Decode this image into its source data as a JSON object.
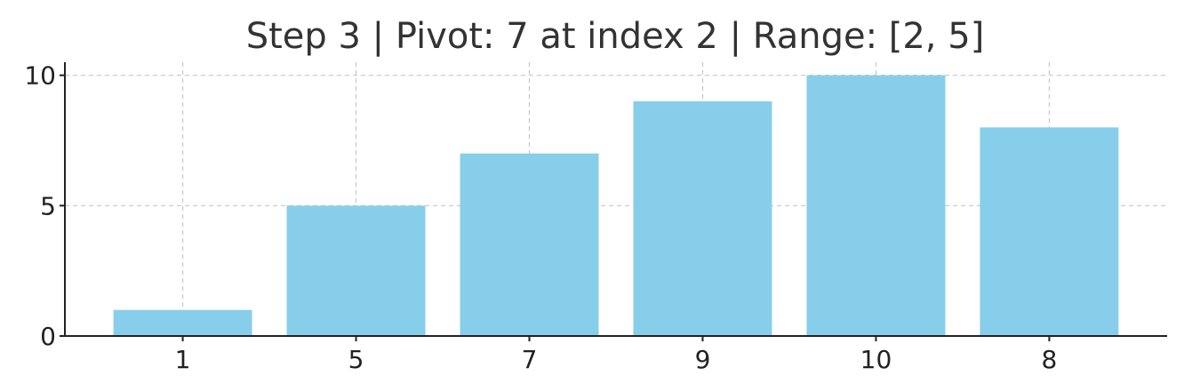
{
  "chart_data": {
    "type": "bar",
    "title": "Step 3 | Pivot: 7 at index 2 | Range: [2, 5]",
    "xlabel": "",
    "ylabel": "",
    "categories": [
      "1",
      "5",
      "7",
      "9",
      "10",
      "8"
    ],
    "values": [
      1,
      5,
      7,
      9,
      10,
      8
    ],
    "ylim": [
      0,
      10.5
    ],
    "yticks": [
      0,
      5,
      10
    ],
    "grid": true,
    "bar_color": "#87CEEB"
  }
}
